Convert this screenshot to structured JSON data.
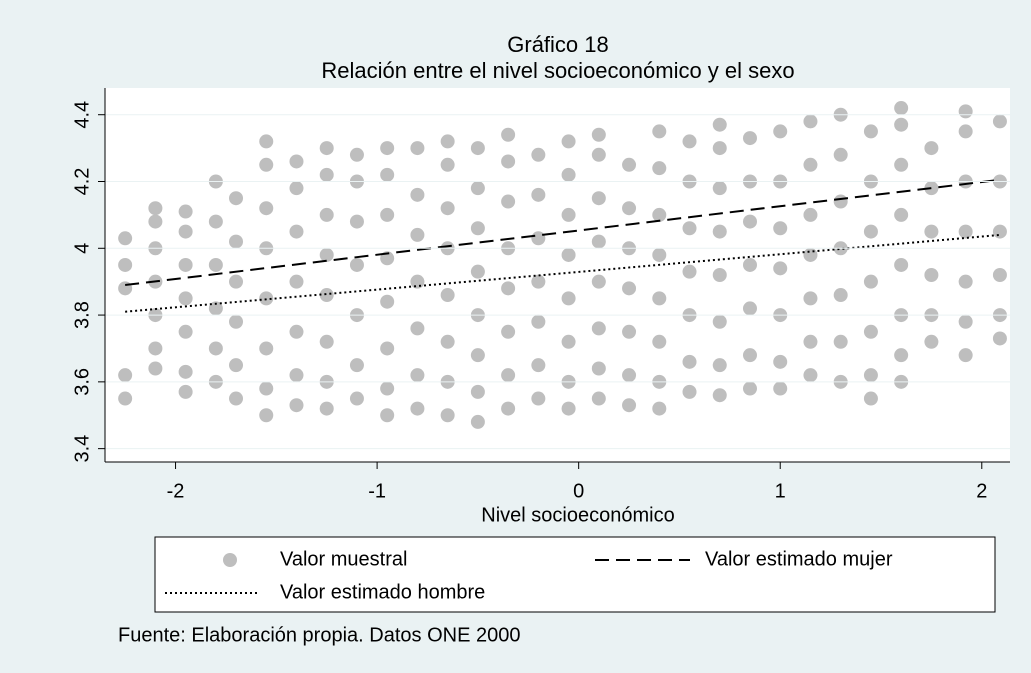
{
  "chart_data": {
    "type": "scatter",
    "title": "Gráfico 18",
    "subtitle": "Relación entre el nivel socioeconómico y el sexo",
    "xlabel": "Nivel socioeconómico",
    "note": "Fuente: Elaboración propia. Datos ONE 2000",
    "xlim": [
      -2.35,
      2.14
    ],
    "ylim": [
      3.36,
      4.48
    ],
    "xticks": [
      -2,
      -1,
      0,
      1,
      2
    ],
    "yticks": [
      3.4,
      3.6,
      3.8,
      4,
      4.2,
      4.4
    ],
    "grid": true,
    "series": [
      {
        "name": "Valor muestral",
        "type": "scatter",
        "color": "#bebebe",
        "x": [
          -2.25,
          -2.25,
          -2.25,
          -2.25,
          -2.25,
          -2.1,
          -2.1,
          -2.1,
          -2.1,
          -2.1,
          -2.1,
          -2.1,
          -1.95,
          -1.95,
          -1.95,
          -1.95,
          -1.95,
          -1.95,
          -1.95,
          -1.8,
          -1.8,
          -1.8,
          -1.8,
          -1.8,
          -1.8,
          -1.7,
          -1.7,
          -1.7,
          -1.7,
          -1.7,
          -1.7,
          -1.55,
          -1.55,
          -1.55,
          -1.55,
          -1.55,
          -1.55,
          -1.55,
          -1.55,
          -1.4,
          -1.4,
          -1.4,
          -1.4,
          -1.4,
          -1.4,
          -1.4,
          -1.25,
          -1.25,
          -1.25,
          -1.25,
          -1.25,
          -1.25,
          -1.25,
          -1.25,
          -1.1,
          -1.1,
          -1.1,
          -1.1,
          -1.1,
          -1.1,
          -1.1,
          -0.95,
          -0.95,
          -0.95,
          -0.95,
          -0.95,
          -0.95,
          -0.95,
          -0.95,
          -0.8,
          -0.8,
          -0.8,
          -0.8,
          -0.8,
          -0.8,
          -0.8,
          -0.65,
          -0.65,
          -0.65,
          -0.65,
          -0.65,
          -0.65,
          -0.65,
          -0.65,
          -0.5,
          -0.5,
          -0.5,
          -0.5,
          -0.5,
          -0.5,
          -0.5,
          -0.5,
          -0.35,
          -0.35,
          -0.35,
          -0.35,
          -0.35,
          -0.35,
          -0.35,
          -0.35,
          -0.2,
          -0.2,
          -0.2,
          -0.2,
          -0.2,
          -0.2,
          -0.2,
          -0.05,
          -0.05,
          -0.05,
          -0.05,
          -0.05,
          -0.05,
          -0.05,
          -0.05,
          0.1,
          0.1,
          0.1,
          0.1,
          0.1,
          0.1,
          0.1,
          0.1,
          0.25,
          0.25,
          0.25,
          0.25,
          0.25,
          0.25,
          0.25,
          0.4,
          0.4,
          0.4,
          0.4,
          0.4,
          0.4,
          0.4,
          0.4,
          0.55,
          0.55,
          0.55,
          0.55,
          0.55,
          0.55,
          0.55,
          0.7,
          0.7,
          0.7,
          0.7,
          0.7,
          0.7,
          0.7,
          0.7,
          0.85,
          0.85,
          0.85,
          0.85,
          0.85,
          0.85,
          0.85,
          1.0,
          1.0,
          1.0,
          1.0,
          1.0,
          1.0,
          1.0,
          1.15,
          1.15,
          1.15,
          1.15,
          1.15,
          1.15,
          1.15,
          1.3,
          1.3,
          1.3,
          1.3,
          1.3,
          1.3,
          1.3,
          1.45,
          1.45,
          1.45,
          1.45,
          1.45,
          1.45,
          1.45,
          1.6,
          1.6,
          1.6,
          1.6,
          1.6,
          1.6,
          1.6,
          1.6,
          1.75,
          1.75,
          1.75,
          1.75,
          1.75,
          1.75,
          1.92,
          1.92,
          1.92,
          1.92,
          1.92,
          1.92,
          1.92,
          2.09,
          2.09,
          2.09,
          2.09,
          2.09,
          2.09
        ],
        "values": [
          3.55,
          3.62,
          3.88,
          3.95,
          4.03,
          3.64,
          3.7,
          3.8,
          3.9,
          4.0,
          4.08,
          4.12,
          3.57,
          3.63,
          3.75,
          3.85,
          3.95,
          4.05,
          4.11,
          3.6,
          3.7,
          3.82,
          3.95,
          4.08,
          4.2,
          3.55,
          3.65,
          3.78,
          3.9,
          4.02,
          4.15,
          3.5,
          3.58,
          3.7,
          3.85,
          4.0,
          4.12,
          4.25,
          4.32,
          3.53,
          3.62,
          3.75,
          3.9,
          4.05,
          4.18,
          4.26,
          3.52,
          3.6,
          3.72,
          3.86,
          3.98,
          4.1,
          4.22,
          4.3,
          3.55,
          3.65,
          3.8,
          3.95,
          4.08,
          4.2,
          4.28,
          3.5,
          3.58,
          3.7,
          3.84,
          3.97,
          4.1,
          4.22,
          4.3,
          3.52,
          3.62,
          3.76,
          3.9,
          4.04,
          4.16,
          4.3,
          3.5,
          3.6,
          3.72,
          3.86,
          4.0,
          4.12,
          4.25,
          4.32,
          3.48,
          3.57,
          3.68,
          3.8,
          3.93,
          4.06,
          4.18,
          4.3,
          3.52,
          3.62,
          3.75,
          3.88,
          4.0,
          4.14,
          4.26,
          4.34,
          3.55,
          3.65,
          3.78,
          3.9,
          4.03,
          4.16,
          4.28,
          3.52,
          3.6,
          3.72,
          3.85,
          3.98,
          4.1,
          4.22,
          4.32,
          3.55,
          3.64,
          3.76,
          3.9,
          4.02,
          4.15,
          4.28,
          4.34,
          3.53,
          3.62,
          3.75,
          3.88,
          4.0,
          4.12,
          4.25,
          3.52,
          3.6,
          3.72,
          3.85,
          3.98,
          4.1,
          4.24,
          4.35,
          3.57,
          3.66,
          3.8,
          3.93,
          4.06,
          4.2,
          4.32,
          3.56,
          3.65,
          3.78,
          3.92,
          4.05,
          4.18,
          4.3,
          4.37,
          3.58,
          3.68,
          3.82,
          3.95,
          4.08,
          4.2,
          4.33,
          3.58,
          3.66,
          3.8,
          3.94,
          4.06,
          4.2,
          4.35,
          3.62,
          3.72,
          3.85,
          3.98,
          4.1,
          4.25,
          4.38,
          3.6,
          3.72,
          3.86,
          4.0,
          4.14,
          4.28,
          4.4,
          3.55,
          3.62,
          3.75,
          3.9,
          4.05,
          4.2,
          4.35,
          3.6,
          3.68,
          3.8,
          3.95,
          4.1,
          4.25,
          4.37,
          4.42,
          3.72,
          3.8,
          3.92,
          4.05,
          4.18,
          4.3,
          3.68,
          3.78,
          3.9,
          4.05,
          4.2,
          4.35,
          4.41,
          3.73,
          3.8,
          3.92,
          4.05,
          4.2,
          4.38
        ]
      },
      {
        "name": "Valor estimado mujer",
        "type": "line",
        "style": "dashed",
        "color": "#000000",
        "x": [
          -2.25,
          2.09
        ],
        "values": [
          3.89,
          4.205
        ]
      },
      {
        "name": "Valor estimado hombre",
        "type": "line",
        "style": "dotted",
        "color": "#000000",
        "x": [
          -2.25,
          2.09
        ],
        "values": [
          3.81,
          4.04
        ]
      }
    ]
  }
}
